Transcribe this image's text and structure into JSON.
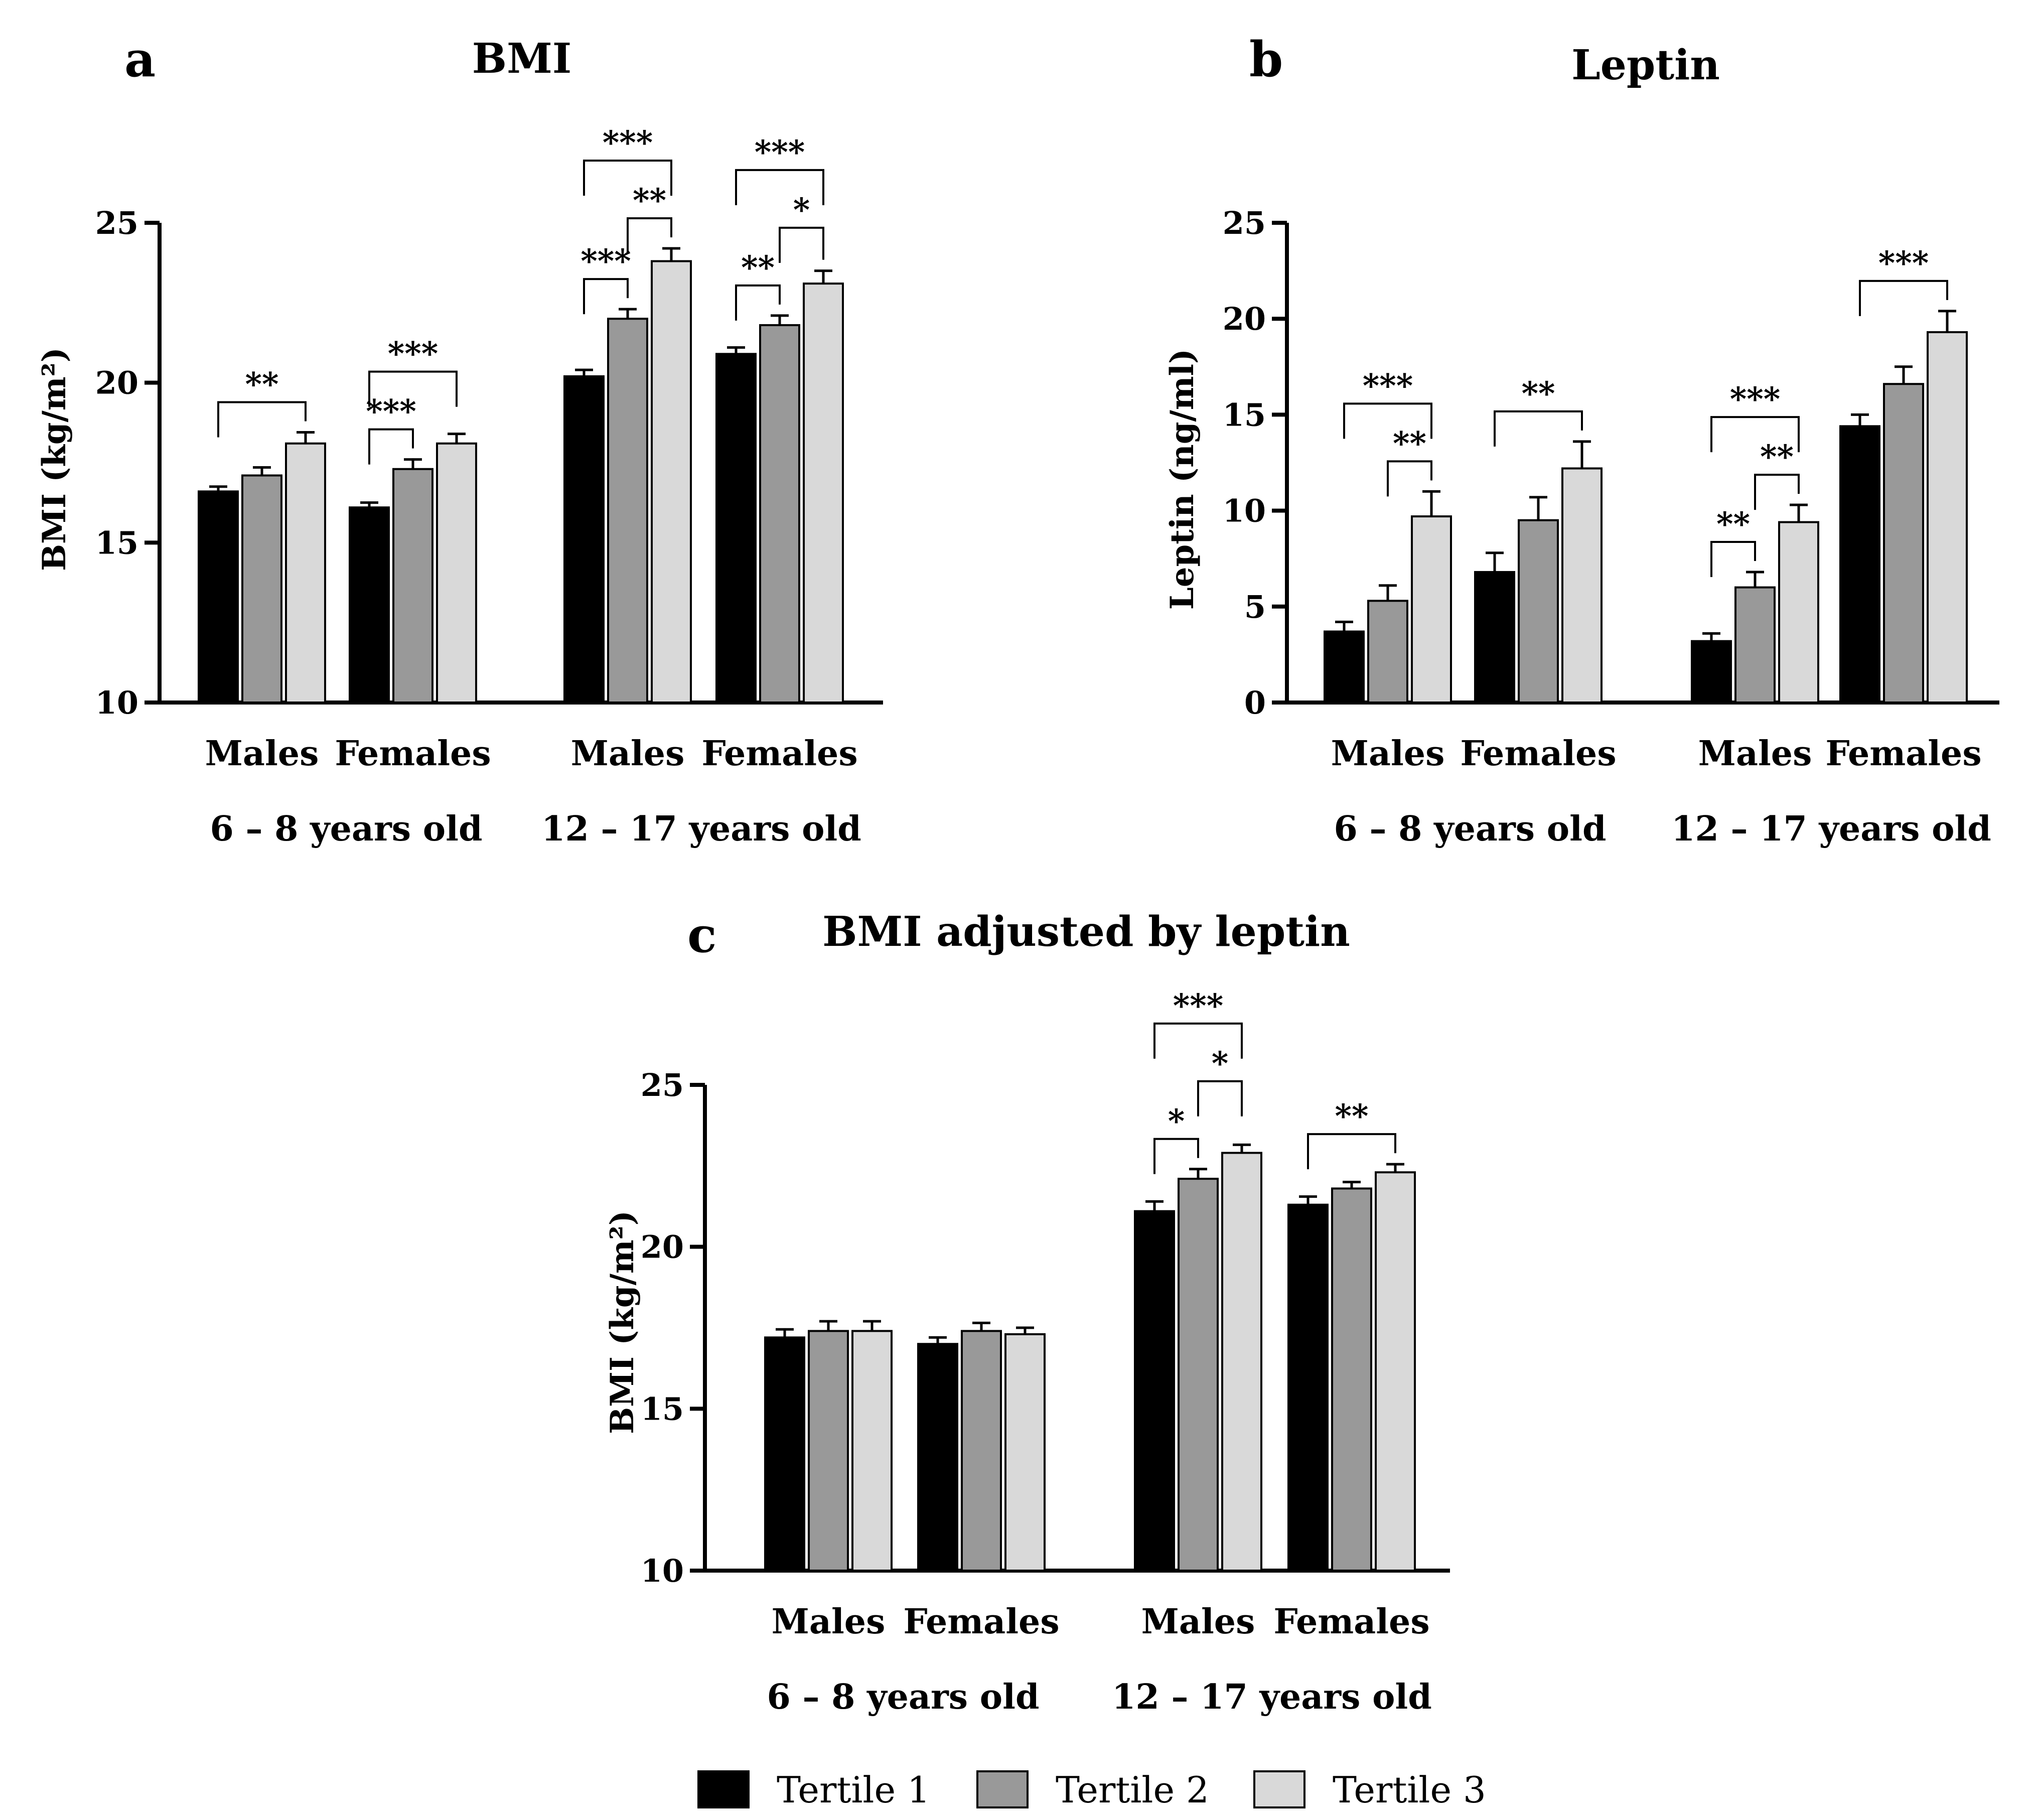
{
  "legend": {
    "items": [
      {
        "label": "Tertile 1",
        "color": "#000000"
      },
      {
        "label": "Tertile 2",
        "color": "#999999"
      },
      {
        "label": "Tertile 3",
        "color": "#d9d9d9"
      }
    ]
  },
  "chart_data": [
    {
      "panel": "a",
      "type": "bar",
      "title": "BMI",
      "ylabel": "BMI (kg/m²)",
      "ylim": [
        10,
        25
      ],
      "yticks": [
        "10",
        "15",
        "20",
        "25"
      ],
      "groups": [
        {
          "label": "6 – 8 years old",
          "categories": [
            "Males",
            "Females"
          ]
        },
        {
          "label": "12 – 17 years old",
          "categories": [
            "Males",
            "Females"
          ]
        }
      ],
      "series": [
        {
          "name": "Tertile 1",
          "values": [
            16.6,
            16.1,
            20.2,
            20.9
          ],
          "errors": [
            0.15,
            0.15,
            0.2,
            0.2
          ]
        },
        {
          "name": "Tertile 2",
          "values": [
            17.1,
            17.3,
            22.0,
            21.8
          ],
          "errors": [
            0.25,
            0.3,
            0.3,
            0.3
          ]
        },
        {
          "name": "Tertile 3",
          "values": [
            18.1,
            18.1,
            23.8,
            23.1
          ],
          "errors": [
            0.35,
            0.3,
            0.4,
            0.4
          ]
        }
      ],
      "significance": [
        {
          "category": 0,
          "from": 0,
          "to": 2,
          "label": "**"
        },
        {
          "category": 1,
          "from": 0,
          "to": 1,
          "label": "***"
        },
        {
          "category": 1,
          "from": 0,
          "to": 2,
          "label": "***"
        },
        {
          "category": 2,
          "from": 0,
          "to": 1,
          "label": "***"
        },
        {
          "category": 2,
          "from": 1,
          "to": 2,
          "label": "**"
        },
        {
          "category": 2,
          "from": 0,
          "to": 2,
          "label": "***"
        },
        {
          "category": 3,
          "from": 0,
          "to": 1,
          "label": "**"
        },
        {
          "category": 3,
          "from": 1,
          "to": 2,
          "label": "*"
        },
        {
          "category": 3,
          "from": 0,
          "to": 2,
          "label": "***"
        }
      ]
    },
    {
      "panel": "b",
      "type": "bar",
      "title": "Leptin",
      "ylabel": "Leptin (ng/ml)",
      "ylim": [
        0,
        25
      ],
      "yticks": [
        "0",
        "5",
        "10",
        "15",
        "20",
        "25"
      ],
      "groups": [
        {
          "label": "6 – 8 years old",
          "categories": [
            "Males",
            "Females"
          ]
        },
        {
          "label": "12 – 17 years old",
          "categories": [
            "Males",
            "Females"
          ]
        }
      ],
      "series": [
        {
          "name": "Tertile 1",
          "values": [
            3.7,
            6.8,
            3.2,
            14.4
          ],
          "errors": [
            0.5,
            1.0,
            0.4,
            0.6
          ]
        },
        {
          "name": "Tertile 2",
          "values": [
            5.3,
            9.5,
            6.0,
            16.6
          ],
          "errors": [
            0.8,
            1.2,
            0.8,
            0.9
          ]
        },
        {
          "name": "Tertile 3",
          "values": [
            9.7,
            12.2,
            9.4,
            19.3
          ],
          "errors": [
            1.3,
            1.4,
            0.9,
            1.1
          ]
        }
      ],
      "significance": [
        {
          "category": 0,
          "from": 1,
          "to": 2,
          "label": "**"
        },
        {
          "category": 0,
          "from": 0,
          "to": 2,
          "label": "***"
        },
        {
          "category": 1,
          "from": 0,
          "to": 2,
          "label": "**"
        },
        {
          "category": 2,
          "from": 0,
          "to": 1,
          "label": "**"
        },
        {
          "category": 2,
          "from": 1,
          "to": 2,
          "label": "**"
        },
        {
          "category": 2,
          "from": 0,
          "to": 2,
          "label": "***"
        },
        {
          "category": 3,
          "from": 0,
          "to": 2,
          "label": "***"
        }
      ]
    },
    {
      "panel": "c",
      "type": "bar",
      "title": "BMI adjusted by leptin",
      "ylabel": "BMI (kg/m²)",
      "ylim": [
        10,
        25
      ],
      "yticks": [
        "10",
        "15",
        "20",
        "25"
      ],
      "groups": [
        {
          "label": "6 – 8 years old",
          "categories": [
            "Males",
            "Females"
          ]
        },
        {
          "label": "12 – 17 years old",
          "categories": [
            "Males",
            "Females"
          ]
        }
      ],
      "series": [
        {
          "name": "Tertile 1",
          "values": [
            17.2,
            17.0,
            21.1,
            21.3
          ],
          "errors": [
            0.25,
            0.2,
            0.3,
            0.25
          ]
        },
        {
          "name": "Tertile 2",
          "values": [
            17.4,
            17.4,
            22.1,
            21.8
          ],
          "errors": [
            0.3,
            0.25,
            0.3,
            0.2
          ]
        },
        {
          "name": "Tertile 3",
          "values": [
            17.4,
            17.3,
            22.9,
            22.3
          ],
          "errors": [
            0.3,
            0.2,
            0.25,
            0.25
          ]
        }
      ],
      "significance": [
        {
          "category": 2,
          "from": 0,
          "to": 1,
          "label": "*"
        },
        {
          "category": 2,
          "from": 1,
          "to": 2,
          "label": "*"
        },
        {
          "category": 2,
          "from": 0,
          "to": 2,
          "label": "***"
        },
        {
          "category": 3,
          "from": 0,
          "to": 2,
          "label": "**"
        }
      ]
    }
  ]
}
